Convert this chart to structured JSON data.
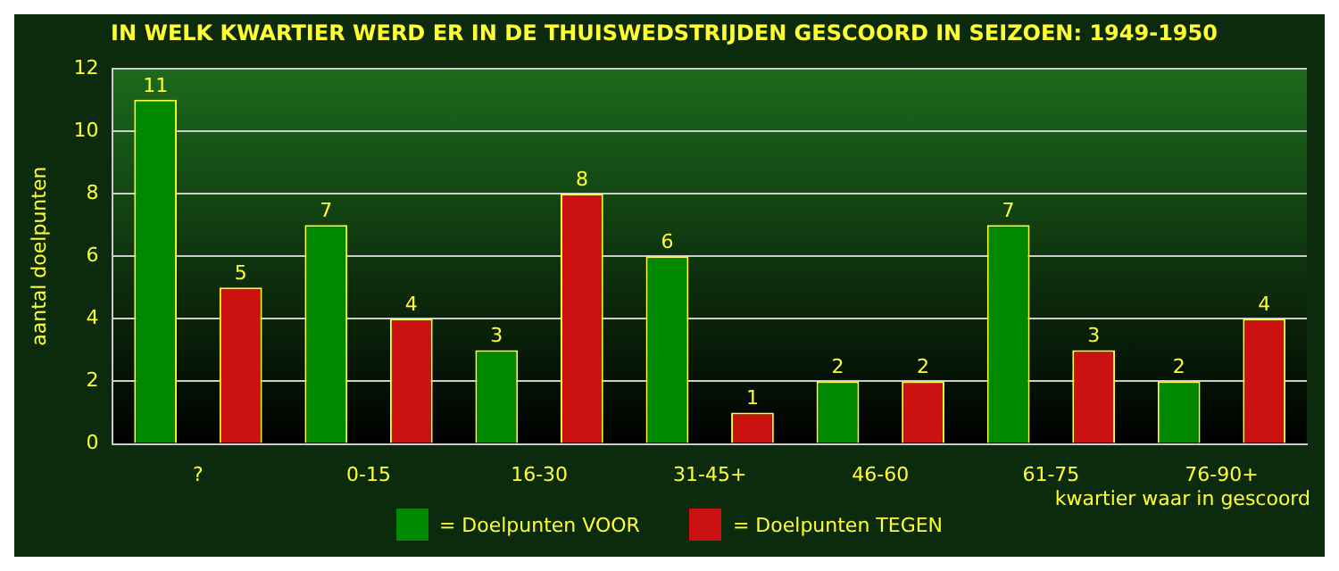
{
  "chart_data": {
    "type": "bar",
    "title": "IN WELK KWARTIER WERD ER IN DE THUISWEDSTRIJDEN GESCOORD IN SEIZOEN: 1949-1950",
    "xlabel": "kwartier waar in gescoord",
    "ylabel": "aantal doelpunten",
    "categories": [
      "?",
      "0-15",
      "16-30",
      "31-45+",
      "46-60",
      "61-75",
      "76-90+"
    ],
    "series": [
      {
        "name": "= Doelpunten VOOR",
        "color": "#008800",
        "values": [
          11,
          7,
          3,
          6,
          2,
          7,
          2
        ]
      },
      {
        "name": "= Doelpunten TEGEN",
        "color": "#cc1111",
        "values": [
          5,
          4,
          8,
          1,
          2,
          3,
          4
        ]
      }
    ],
    "ylim": [
      0,
      12
    ],
    "yticks": [
      0,
      2,
      4,
      6,
      8,
      10,
      12
    ],
    "grid": "y",
    "legend": "bottom",
    "data_labels": true
  }
}
